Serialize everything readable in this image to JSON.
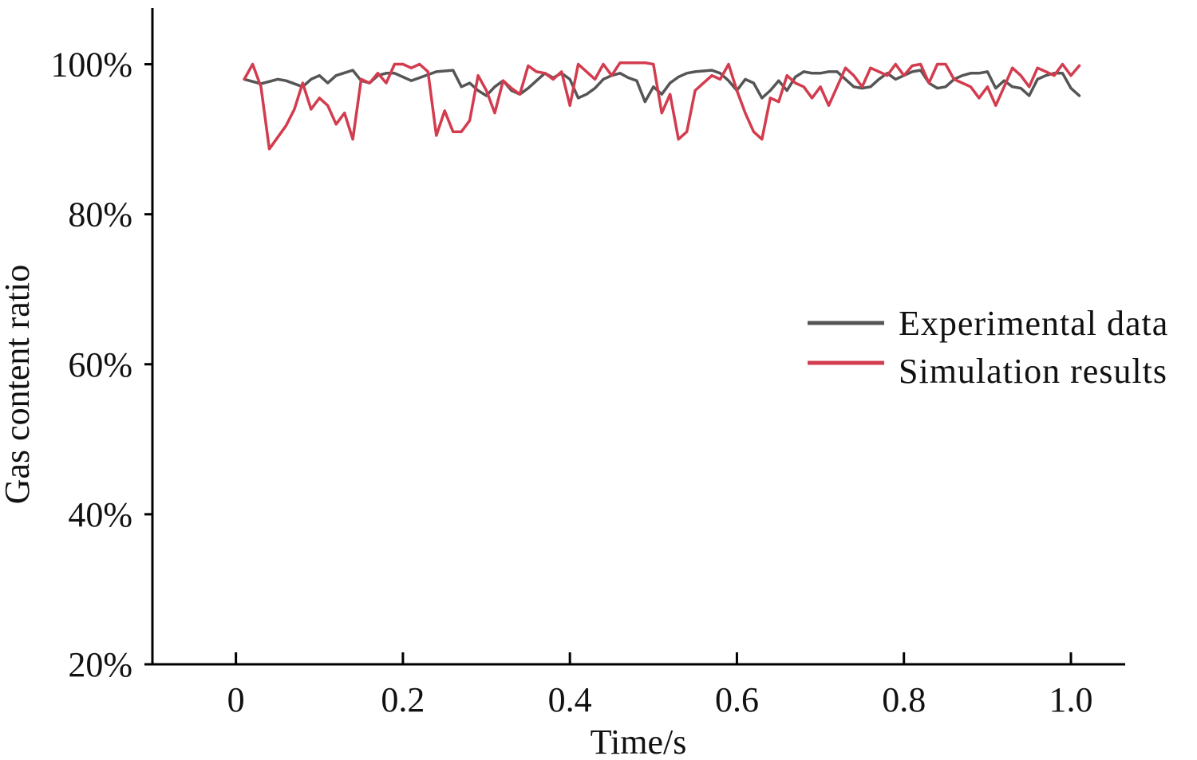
{
  "chart_data": {
    "type": "line",
    "title": "",
    "xlabel": "Time/s",
    "ylabel": "Gas content ratio",
    "xlim": [
      -0.1,
      1.065
    ],
    "ylim": [
      20,
      107.5
    ],
    "x_ticks": [
      0,
      0.2,
      0.4,
      0.6,
      0.8,
      1.0
    ],
    "x_tick_labels": [
      "0",
      "0.2",
      "0.4",
      "0.6",
      "0.8",
      "1.0"
    ],
    "y_ticks": [
      20,
      40,
      60,
      80,
      100
    ],
    "y_tick_labels": [
      "20%",
      "40%",
      "60%",
      "80%",
      "100%"
    ],
    "grid": false,
    "legend_position": "right",
    "series": [
      {
        "name": "Experimental data",
        "color": "#555555",
        "x": [
          0.01,
          0.03,
          0.05,
          0.06,
          0.08,
          0.09,
          0.1,
          0.11,
          0.12,
          0.14,
          0.15,
          0.16,
          0.17,
          0.18,
          0.19,
          0.2,
          0.21,
          0.22,
          0.24,
          0.26,
          0.27,
          0.28,
          0.29,
          0.3,
          0.31,
          0.32,
          0.33,
          0.34,
          0.35,
          0.36,
          0.37,
          0.38,
          0.39,
          0.4,
          0.41,
          0.42,
          0.43,
          0.44,
          0.45,
          0.46,
          0.47,
          0.48,
          0.49,
          0.5,
          0.51,
          0.52,
          0.53,
          0.54,
          0.55,
          0.57,
          0.58,
          0.59,
          0.6,
          0.61,
          0.62,
          0.63,
          0.64,
          0.65,
          0.66,
          0.67,
          0.68,
          0.69,
          0.7,
          0.71,
          0.72,
          0.73,
          0.74,
          0.75,
          0.76,
          0.77,
          0.78,
          0.79,
          0.8,
          0.81,
          0.82,
          0.83,
          0.84,
          0.85,
          0.86,
          0.87,
          0.88,
          0.89,
          0.9,
          0.91,
          0.92,
          0.93,
          0.94,
          0.95,
          0.96,
          0.97,
          0.98,
          0.99,
          1.0,
          1.01
        ],
        "values": [
          98.0,
          97.4,
          98.0,
          97.8,
          97.0,
          98.0,
          98.5,
          97.5,
          98.5,
          99.2,
          97.8,
          97.5,
          98.5,
          98.8,
          98.8,
          98.3,
          97.8,
          98.2,
          99.0,
          99.2,
          97.0,
          97.5,
          96.5,
          95.8,
          97.0,
          97.8,
          96.5,
          96.0,
          96.8,
          97.8,
          98.8,
          98.2,
          98.8,
          98.0,
          95.5,
          96.0,
          96.8,
          98.0,
          98.5,
          98.8,
          98.2,
          97.8,
          95.0,
          97.0,
          96.0,
          97.5,
          98.3,
          98.8,
          99.0,
          99.2,
          98.8,
          97.8,
          96.5,
          98.0,
          97.5,
          95.5,
          96.5,
          97.8,
          96.5,
          98.3,
          99.0,
          98.8,
          98.8,
          99.0,
          99.0,
          98.0,
          97.0,
          96.8,
          97.0,
          98.0,
          98.8,
          98.0,
          98.5,
          99.0,
          99.2,
          97.5,
          96.8,
          97.0,
          98.0,
          98.5,
          98.8,
          98.8,
          99.0,
          96.8,
          97.8,
          97.0,
          96.8,
          95.8,
          98.0,
          98.5,
          98.8,
          98.8,
          96.8,
          95.8
        ]
      },
      {
        "name": "Simulation results",
        "color": "#d23c4e",
        "x": [
          0.01,
          0.02,
          0.03,
          0.04,
          0.06,
          0.07,
          0.08,
          0.09,
          0.1,
          0.11,
          0.12,
          0.13,
          0.14,
          0.15,
          0.16,
          0.17,
          0.18,
          0.19,
          0.2,
          0.21,
          0.22,
          0.23,
          0.24,
          0.25,
          0.26,
          0.27,
          0.28,
          0.29,
          0.3,
          0.31,
          0.32,
          0.33,
          0.34,
          0.35,
          0.36,
          0.37,
          0.38,
          0.39,
          0.4,
          0.41,
          0.42,
          0.43,
          0.44,
          0.45,
          0.46,
          0.47,
          0.48,
          0.49,
          0.5,
          0.51,
          0.52,
          0.53,
          0.54,
          0.55,
          0.56,
          0.57,
          0.58,
          0.59,
          0.6,
          0.61,
          0.62,
          0.63,
          0.64,
          0.65,
          0.66,
          0.67,
          0.68,
          0.69,
          0.7,
          0.71,
          0.72,
          0.73,
          0.74,
          0.75,
          0.76,
          0.77,
          0.78,
          0.79,
          0.8,
          0.81,
          0.82,
          0.83,
          0.84,
          0.85,
          0.86,
          0.87,
          0.88,
          0.89,
          0.9,
          0.91,
          0.92,
          0.93,
          0.94,
          0.95,
          0.96,
          0.97,
          0.98,
          0.99,
          1.0,
          1.01
        ],
        "values": [
          98.0,
          100.0,
          97.0,
          88.7,
          91.8,
          94.0,
          97.5,
          94.0,
          95.5,
          94.5,
          92.0,
          93.5,
          90.0,
          98.0,
          97.5,
          98.8,
          97.5,
          100.0,
          100.0,
          99.5,
          100.0,
          99.0,
          90.5,
          93.8,
          91.0,
          91.0,
          92.5,
          98.5,
          96.5,
          93.5,
          97.8,
          96.8,
          96.0,
          99.8,
          99.0,
          98.8,
          98.0,
          99.0,
          94.5,
          100.0,
          99.0,
          98.0,
          100.0,
          98.5,
          100.2,
          100.2,
          100.2,
          100.2,
          100.0,
          93.5,
          96.0,
          90.0,
          91.0,
          96.5,
          97.5,
          98.5,
          98.0,
          100.0,
          96.5,
          93.5,
          91.0,
          90.0,
          95.5,
          95.0,
          98.5,
          97.5,
          97.0,
          95.5,
          97.0,
          94.5,
          97.0,
          99.5,
          98.5,
          97.0,
          99.5,
          99.0,
          98.5,
          100.0,
          98.5,
          99.8,
          100.0,
          97.5,
          100.0,
          100.0,
          98.0,
          97.5,
          97.0,
          95.5,
          97.0,
          94.5,
          97.0,
          99.5,
          98.5,
          97.0,
          99.5,
          99.0,
          98.5,
          100.0,
          98.5,
          99.8
        ]
      }
    ]
  }
}
